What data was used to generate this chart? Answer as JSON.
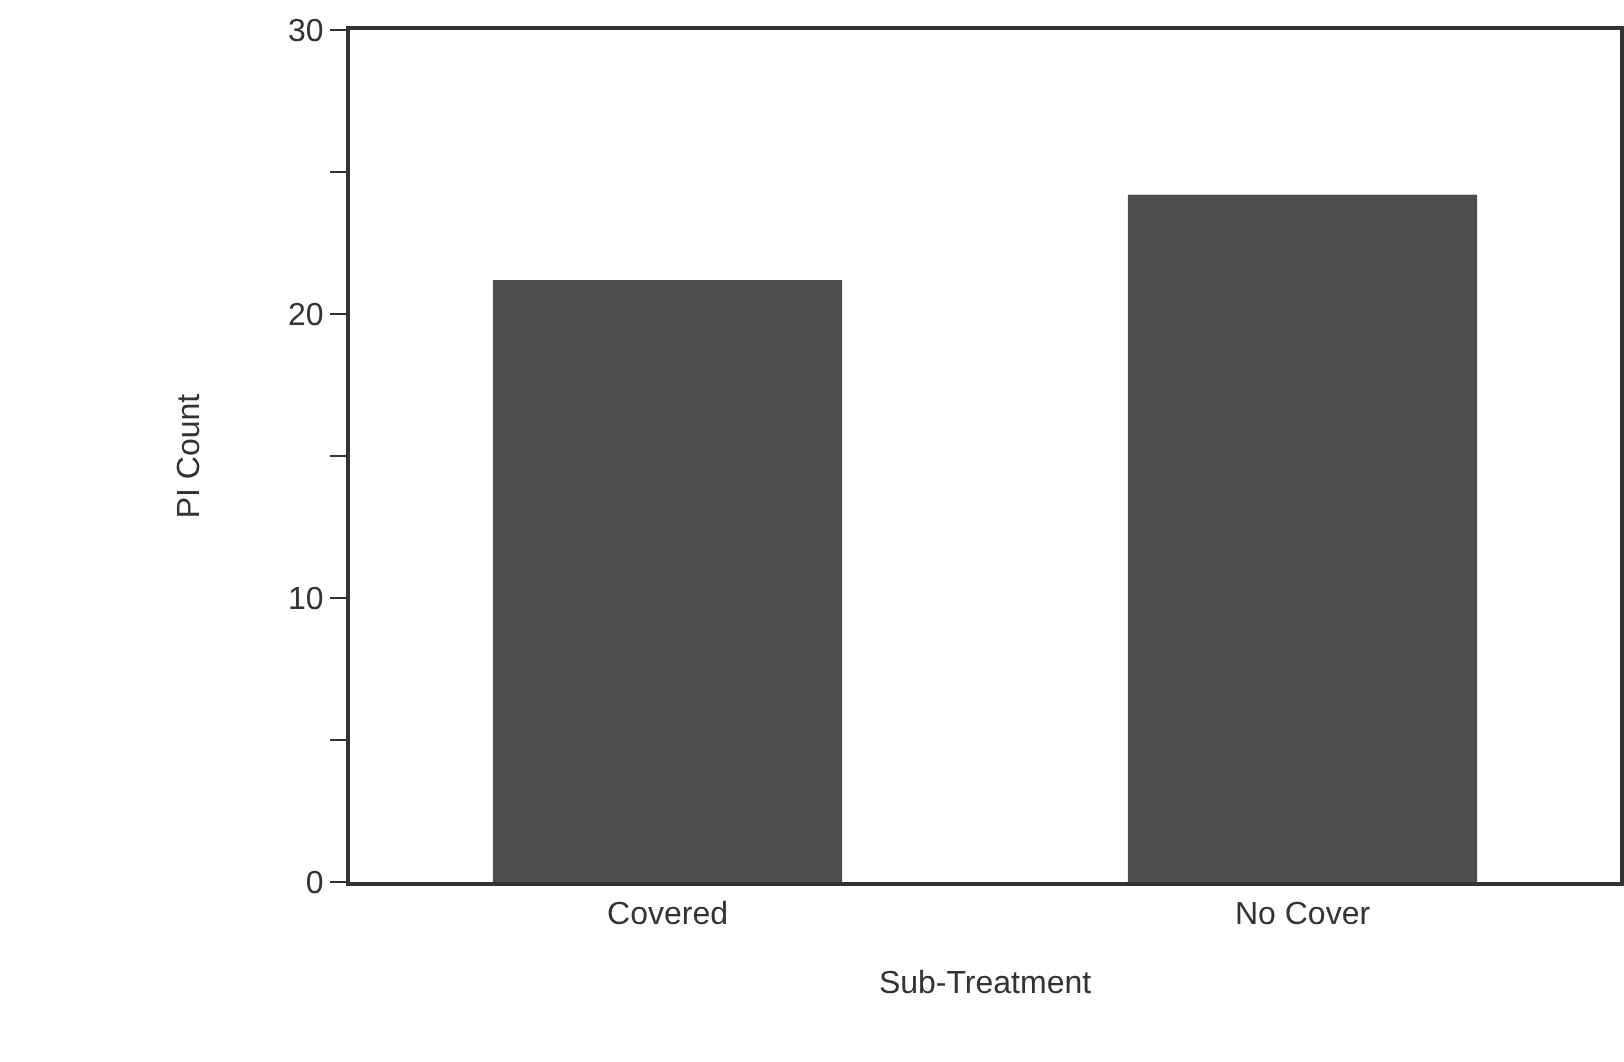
{
  "chart_data": {
    "type": "bar",
    "xlabel": "Sub-Treatment",
    "ylabel": "PI Count",
    "categories": [
      "Covered",
      "No Cover"
    ],
    "values": [
      21.2,
      24.2
    ],
    "color": "#4d4d4d",
    "ylim": [
      0,
      30
    ],
    "yticks": [
      0,
      {
        "value": 5,
        "label": null
      },
      10,
      {
        "value": 15,
        "label": null
      },
      20,
      {
        "value": 25,
        "label": null
      },
      30
    ]
  }
}
